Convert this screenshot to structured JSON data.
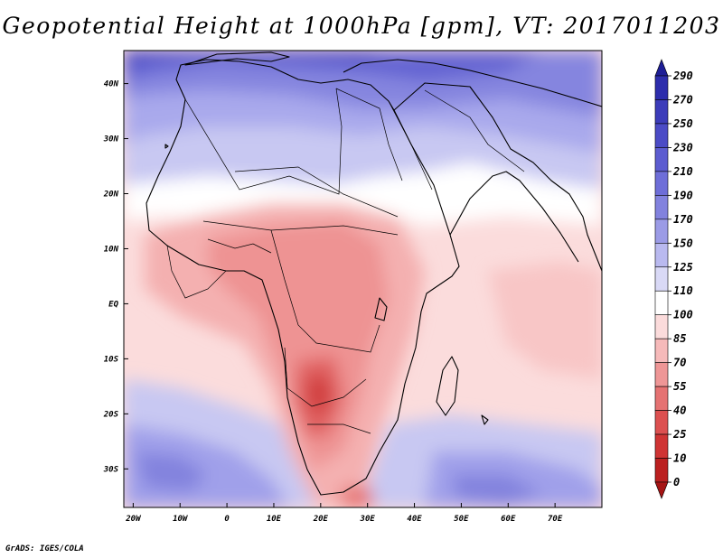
{
  "title": "Geopotential Height at 1000hPa [gpm], VT: 2017011203",
  "credit": "GrADS: IGES/COLA",
  "map": {
    "lon_range": [
      -22,
      80
    ],
    "lat_range": [
      -37,
      46
    ],
    "x_ticks": [
      "20W",
      "10W",
      "0",
      "10E",
      "20E",
      "30E",
      "40E",
      "50E",
      "60E",
      "70E"
    ],
    "x_tick_values": [
      -20,
      -10,
      0,
      10,
      20,
      30,
      40,
      50,
      60,
      70
    ],
    "y_ticks": [
      "40N",
      "30N",
      "20N",
      "10N",
      "EQ",
      "10S",
      "20S",
      "30S"
    ],
    "y_tick_values": [
      40,
      30,
      20,
      10,
      0,
      -10,
      -20,
      -30
    ]
  },
  "colorbar": {
    "labels": [
      "290",
      "270",
      "250",
      "230",
      "210",
      "190",
      "170",
      "150",
      "125",
      "110",
      "100",
      "85",
      "70",
      "55",
      "40",
      "25",
      "10",
      "0"
    ],
    "colors": [
      "#1e1e96",
      "#2d2dac",
      "#3c3cba",
      "#4b4bc6",
      "#5c5cd0",
      "#6e6ed8",
      "#8282de",
      "#9b9be6",
      "#b9b9ef",
      "#d9d9f6",
      "#ffffff",
      "#fbdbdb",
      "#f6baba",
      "#ee9696",
      "#e57272",
      "#dc5050",
      "#cf3434",
      "#bb2020",
      "#a51414"
    ]
  }
}
